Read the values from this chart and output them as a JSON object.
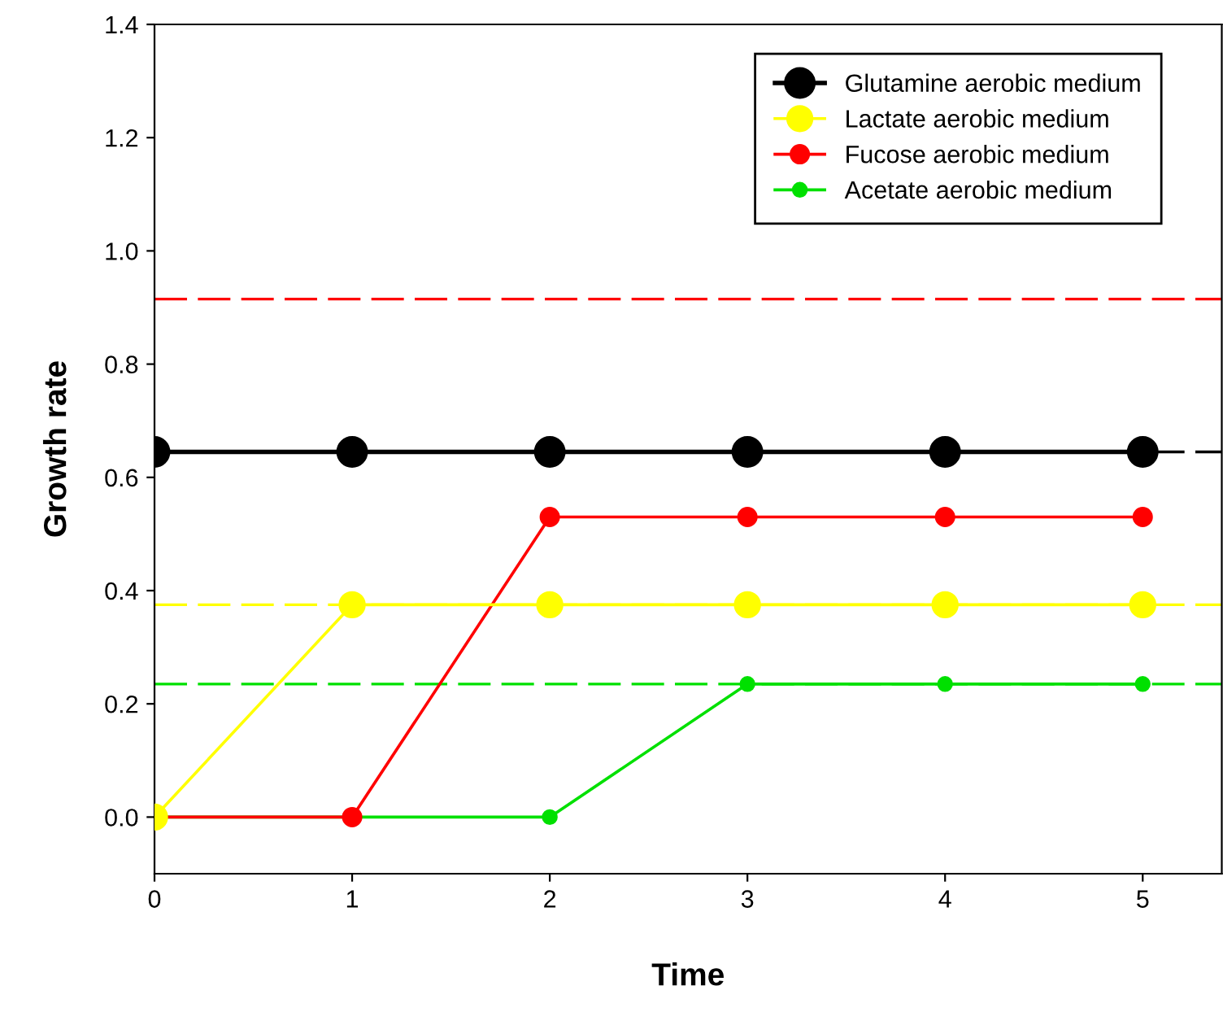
{
  "chart_data": {
    "type": "line",
    "xlabel": "Time",
    "ylabel": "Growth rate",
    "x": [
      0,
      1,
      2,
      3,
      4,
      5
    ],
    "series": [
      {
        "name": "Glutamine aerobic medium",
        "color": "#000000",
        "values": [
          0.645,
          0.645,
          0.645,
          0.645,
          0.645,
          0.645
        ]
      },
      {
        "name": "Lactate aerobic medium",
        "color": "#ffff00",
        "values": [
          0,
          0.375,
          0.375,
          0.375,
          0.375,
          0.375
        ]
      },
      {
        "name": "Fucose aerobic medium",
        "color": "#ff0000",
        "values": [
          0,
          0,
          0.53,
          0.53,
          0.53,
          0.53
        ]
      },
      {
        "name": "Acetate aerobic medium",
        "color": "#00e000",
        "values": [
          0,
          0,
          0,
          0.235,
          0.235,
          0.235
        ]
      }
    ],
    "ref_lines": [
      {
        "axis": "y",
        "value": 0.915,
        "color": "#ff0000",
        "line_style": "dashed"
      },
      {
        "axis": "y",
        "value": 0.645,
        "color": "#000000",
        "line_style": "dashed"
      },
      {
        "axis": "y",
        "value": 0.375,
        "color": "#ffff00",
        "line_style": "dashed"
      },
      {
        "axis": "y",
        "value": 0.235,
        "color": "#00e000",
        "line_style": "dashed"
      }
    ],
    "xlim": [
      0,
      5.4
    ],
    "ylim": [
      -0.1,
      1.4
    ],
    "xticks": [
      0,
      1,
      2,
      3,
      4,
      5
    ],
    "yticks": [
      {
        "value": 0,
        "label": "0.0"
      },
      {
        "value": 0.2,
        "label": "0.2"
      },
      {
        "value": 0.4,
        "label": "0.4"
      },
      {
        "value": 0.6,
        "label": "0.6"
      },
      {
        "value": 0.8,
        "label": "0.8"
      },
      {
        "value": 1.0,
        "label": "1.0"
      },
      {
        "value": 1.2,
        "label": "1.2"
      },
      {
        "value": 1.4,
        "label": "1.4"
      }
    ],
    "marker": "circle",
    "line_style": "solid",
    "grid": false,
    "legend": "top right"
  }
}
